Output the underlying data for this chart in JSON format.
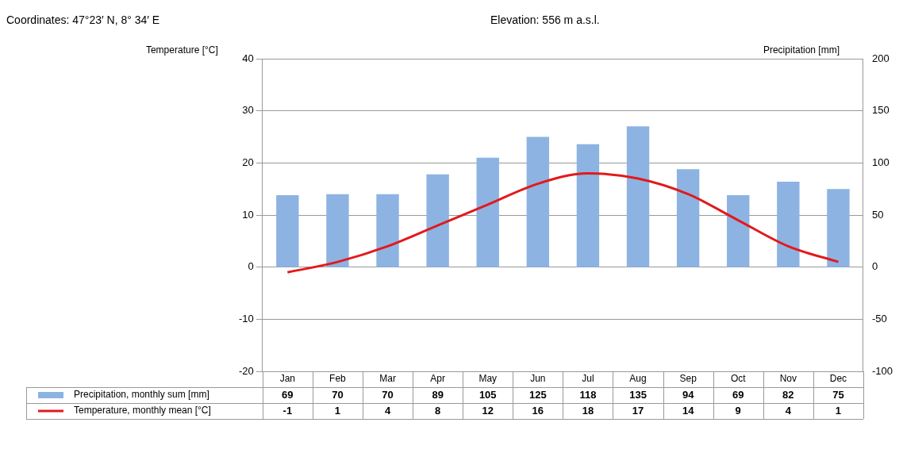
{
  "chart_data": {
    "type": "bar",
    "annotations": [
      "Coordinates: 47°23′ N, 8° 34′ E",
      "Elevation: 556 m a.s.l."
    ],
    "ylabel": "Temperature [°C]",
    "y2label": "Precipitation [mm]",
    "categories": [
      "Jan",
      "Feb",
      "Mar",
      "Apr",
      "May",
      "Jun",
      "Jul",
      "Aug",
      "Sep",
      "Oct",
      "Nov",
      "Dec"
    ],
    "series": [
      {
        "name": "Precipitation, monthly sum [mm]",
        "axis": "y2",
        "color": "#8db3e2",
        "values": [
          69,
          70,
          70,
          89,
          105,
          125,
          118,
          135,
          94,
          69,
          82,
          75
        ]
      },
      {
        "name": "Temperature, monthly mean [°C]",
        "type": "line",
        "axis": "y",
        "color": "#e3191c",
        "values": [
          -1,
          1,
          4,
          8,
          12,
          16,
          18,
          17,
          14,
          9,
          4,
          1
        ]
      }
    ],
    "ylim": [
      -20,
      40
    ],
    "yticks": [
      -20,
      -10,
      0,
      10,
      20,
      30,
      40
    ],
    "y2lim": [
      -100,
      200
    ],
    "y2ticks": [
      -100,
      -50,
      0,
      50,
      100,
      150,
      200
    ],
    "grid": "y",
    "legend": "bottom left",
    "data_labels": true,
    "marker": "none",
    "line_style": "solid"
  }
}
